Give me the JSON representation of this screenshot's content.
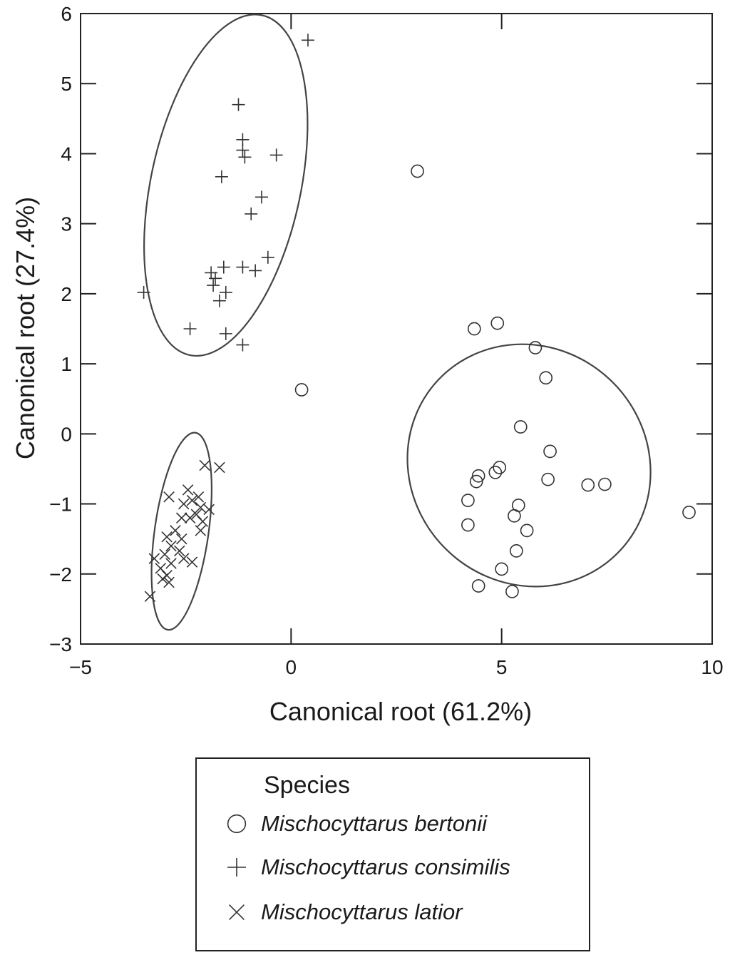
{
  "chart_data": {
    "type": "scatter",
    "xlabel": "Canonical root (61.2%)",
    "ylabel": "Canonical root (27.4%)",
    "xlim": [
      -5,
      10
    ],
    "ylim": [
      -3,
      6
    ],
    "xticks": [
      -5,
      0,
      5,
      10
    ],
    "xtick_labels": [
      "−5",
      "0",
      "5",
      "10"
    ],
    "yticks": [
      -3,
      -2,
      -1,
      0,
      1,
      2,
      3,
      4,
      5,
      6
    ],
    "ytick_labels": [
      "−3",
      "−2",
      "−1",
      "0",
      "1",
      "2",
      "3",
      "4",
      "5",
      "6"
    ],
    "grid": false,
    "legend": {
      "title": "Species",
      "placement": "below"
    },
    "series": [
      {
        "name": "Mischocyttarus bertonii",
        "marker": "circle",
        "points": [
          [
            3.0,
            3.75
          ],
          [
            0.25,
            0.63
          ],
          [
            4.35,
            1.5
          ],
          [
            4.9,
            1.58
          ],
          [
            5.8,
            1.23
          ],
          [
            6.05,
            0.8
          ],
          [
            5.45,
            0.1
          ],
          [
            6.15,
            -0.25
          ],
          [
            4.45,
            -0.6
          ],
          [
            4.95,
            -0.48
          ],
          [
            4.85,
            -0.55
          ],
          [
            4.4,
            -0.68
          ],
          [
            6.1,
            -0.65
          ],
          [
            7.05,
            -0.73
          ],
          [
            7.45,
            -0.72
          ],
          [
            9.45,
            -1.12
          ],
          [
            4.2,
            -0.95
          ],
          [
            5.4,
            -1.02
          ],
          [
            5.3,
            -1.17
          ],
          [
            5.6,
            -1.38
          ],
          [
            4.2,
            -1.3
          ],
          [
            5.35,
            -1.67
          ],
          [
            5.0,
            -1.93
          ],
          [
            4.45,
            -2.17
          ],
          [
            5.25,
            -2.25
          ]
        ]
      },
      {
        "name": "Mischocyttarus consimilis",
        "marker": "plus",
        "points": [
          [
            0.4,
            5.62
          ],
          [
            -1.25,
            4.7
          ],
          [
            -1.15,
            4.2
          ],
          [
            -1.15,
            4.05
          ],
          [
            -1.1,
            3.95
          ],
          [
            -0.35,
            3.98
          ],
          [
            -1.65,
            3.67
          ],
          [
            -0.7,
            3.38
          ],
          [
            -0.95,
            3.14
          ],
          [
            -0.55,
            2.52
          ],
          [
            -1.15,
            2.38
          ],
          [
            -0.85,
            2.33
          ],
          [
            -1.6,
            2.38
          ],
          [
            -1.9,
            2.3
          ],
          [
            -1.8,
            2.22
          ],
          [
            -1.85,
            2.12
          ],
          [
            -1.55,
            2.02
          ],
          [
            -1.7,
            1.9
          ],
          [
            -3.5,
            2.02
          ],
          [
            -2.4,
            1.5
          ],
          [
            -1.55,
            1.43
          ],
          [
            -1.15,
            1.27
          ]
        ]
      },
      {
        "name": "Mischocyttarus latior",
        "marker": "x",
        "points": [
          [
            -2.05,
            -0.45
          ],
          [
            -1.7,
            -0.48
          ],
          [
            -2.45,
            -0.8
          ],
          [
            -2.9,
            -0.9
          ],
          [
            -2.2,
            -0.9
          ],
          [
            -2.35,
            -0.95
          ],
          [
            -2.55,
            -1.0
          ],
          [
            -2.15,
            -1.05
          ],
          [
            -1.95,
            -1.08
          ],
          [
            -2.25,
            -1.15
          ],
          [
            -2.4,
            -1.2
          ],
          [
            -2.6,
            -1.2
          ],
          [
            -2.1,
            -1.25
          ],
          [
            -2.15,
            -1.38
          ],
          [
            -2.75,
            -1.38
          ],
          [
            -2.95,
            -1.47
          ],
          [
            -2.6,
            -1.5
          ],
          [
            -2.85,
            -1.6
          ],
          [
            -2.65,
            -1.67
          ],
          [
            -3.0,
            -1.72
          ],
          [
            -2.55,
            -1.78
          ],
          [
            -3.25,
            -1.78
          ],
          [
            -2.35,
            -1.83
          ],
          [
            -2.85,
            -1.85
          ],
          [
            -3.1,
            -1.92
          ],
          [
            -2.95,
            -2.02
          ],
          [
            -3.05,
            -2.07
          ],
          [
            -2.9,
            -2.12
          ],
          [
            -3.35,
            -2.32
          ]
        ]
      }
    ],
    "ellipses": [
      {
        "series": "Mischocyttarus consimilis",
        "cx": -1.55,
        "cy": 3.55,
        "rx": 1.78,
        "ry": 2.48,
        "rotation_deg": 12
      },
      {
        "series": "Mischocyttarus bertonii",
        "cx": 5.65,
        "cy": -0.45,
        "rx": 2.8,
        "ry": 1.78,
        "rotation_deg": -47
      },
      {
        "series": "Mischocyttarus latior",
        "cx": -2.6,
        "cy": -1.39,
        "rx": 0.64,
        "ry": 1.42,
        "rotation_deg": 8
      }
    ]
  }
}
